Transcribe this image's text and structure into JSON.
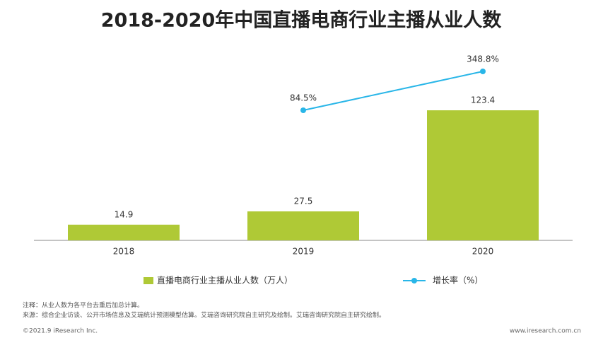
{
  "chart_data": {
    "type": "bar",
    "title": "2018-2020年中国直播电商行业主播从业人数",
    "categories": [
      "2018",
      "2019",
      "2020"
    ],
    "series": [
      {
        "name": "直播电商行业主播从业人数（万人）",
        "type": "bar",
        "color": "#afc936",
        "values": [
          14.9,
          27.5,
          123.4
        ]
      },
      {
        "name": "增长率（%）",
        "type": "line",
        "axis": "y2",
        "color": "#29b6e8",
        "values": [
          null,
          84.5,
          348.8
        ],
        "value_labels": [
          null,
          "84.5%",
          "348.8%"
        ]
      }
    ]
  },
  "notes": [
    "注释：从业人数为各平台去重后加总计算。",
    "来源：综合企业访谈、公开市场信息及艾瑞统计预测模型估算。艾瑞咨询研究院自主研究及绘制。艾瑞咨询研究院自主研究绘制。"
  ],
  "footer": {
    "left": "©2021.9 iResearch Inc.",
    "right": "www.iresearch.com.cn"
  }
}
